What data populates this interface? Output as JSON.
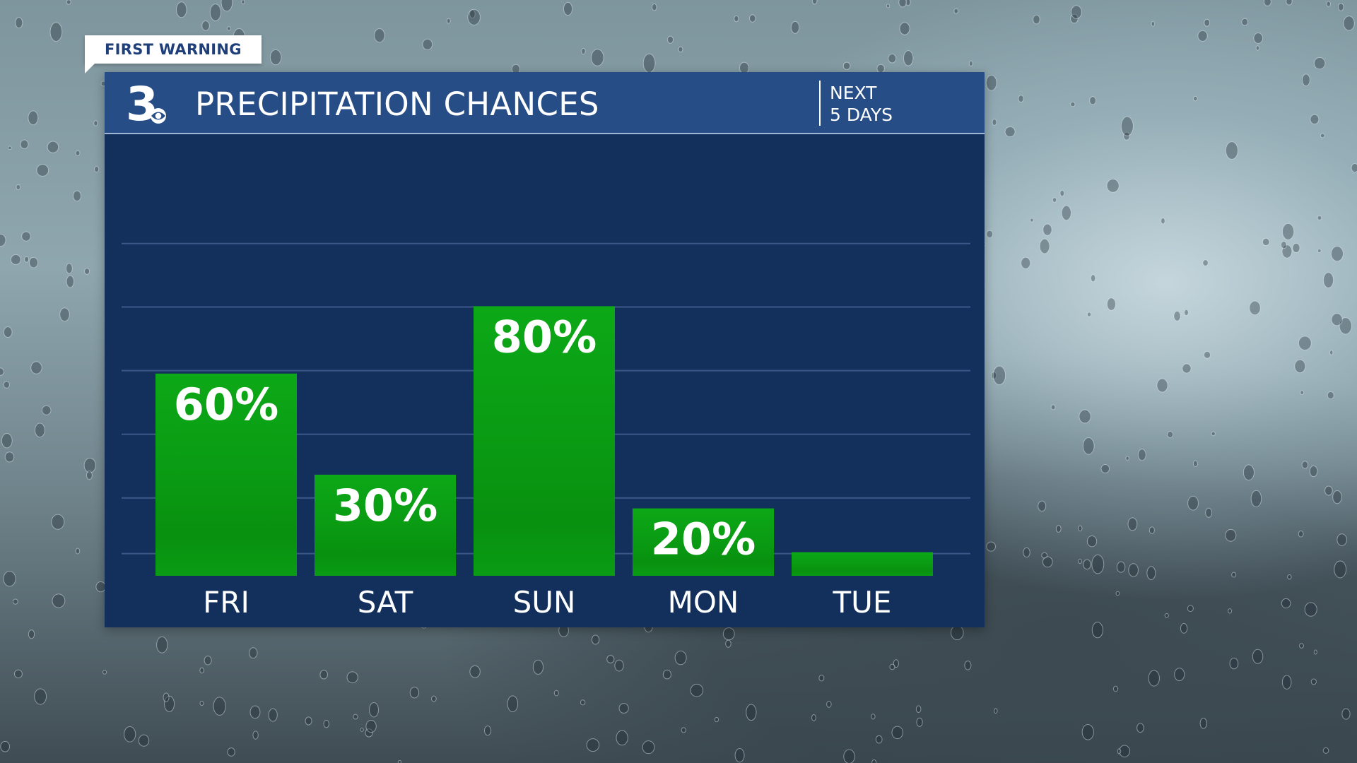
{
  "tag": {
    "label": "FIRST WARNING"
  },
  "station": {
    "logo_text": "3"
  },
  "header": {
    "title": "PRECIPITATION CHANCES",
    "period_line1": "NEXT",
    "period_line2": "5 DAYS"
  },
  "colors": {
    "panel": "#13305c",
    "header": "#274d86",
    "bar": "#0aa012",
    "grid": "#3c5787",
    "text": "#ffffff"
  },
  "chart_data": {
    "type": "bar",
    "title": "PRECIPITATION CHANCES",
    "categories": [
      "FRI",
      "SAT",
      "SUN",
      "MON",
      "TUE"
    ],
    "values": [
      60,
      30,
      80,
      20,
      7
    ],
    "data_labels": [
      "60%",
      "30%",
      "80%",
      "20%",
      ""
    ],
    "ylim": [
      0,
      100
    ],
    "grid": true
  }
}
